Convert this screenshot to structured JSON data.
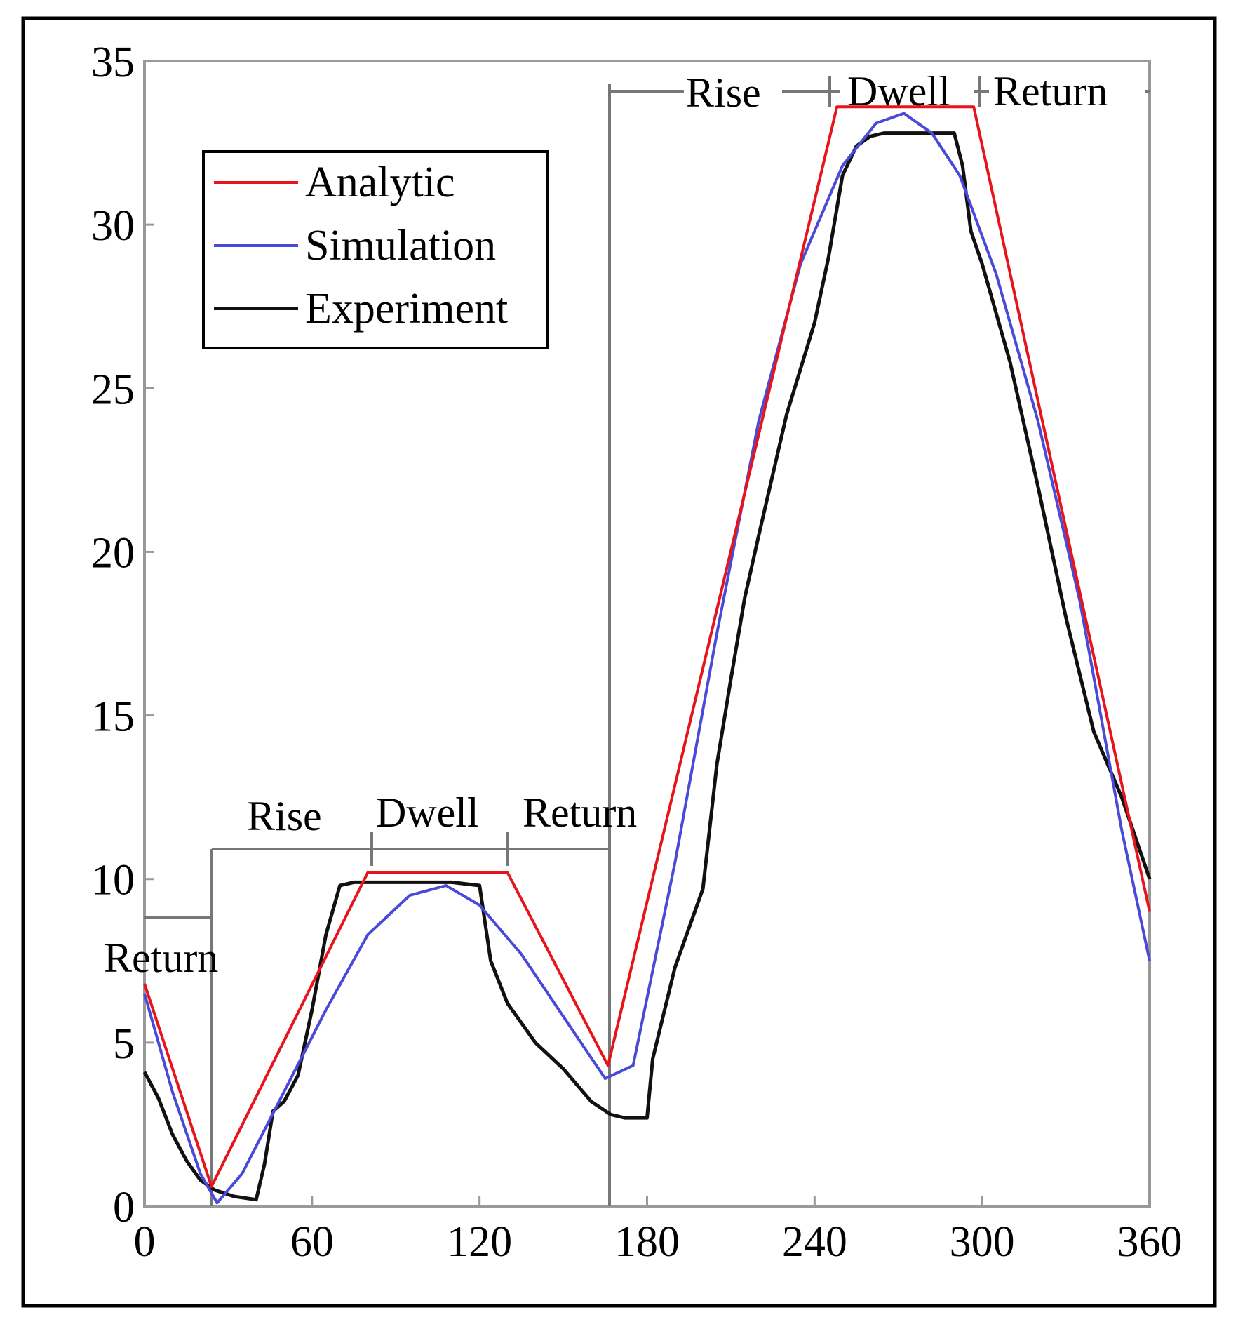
{
  "chart_data": {
    "type": "line",
    "title": "",
    "xlabel": "",
    "ylabel": "",
    "xlim": [
      0,
      360
    ],
    "ylim": [
      0,
      35
    ],
    "xticks": [
      "0",
      "60",
      "120",
      "180",
      "240",
      "300",
      "360"
    ],
    "yticks": [
      "0",
      "5",
      "10",
      "15",
      "20",
      "25",
      "30",
      "35"
    ],
    "grid": false,
    "legend_position": "top-left",
    "series": [
      {
        "name": "Analytic",
        "color": "#e8141c",
        "x": [
          0,
          24,
          80,
          130,
          166,
          248,
          297,
          360
        ],
        "y": [
          6.8,
          0.6,
          10.2,
          10.2,
          4.3,
          33.6,
          33.6,
          9.0
        ]
      },
      {
        "name": "Simulation",
        "color": "#4a4ad8",
        "x": [
          0,
          10,
          20,
          26,
          35,
          50,
          65,
          80,
          95,
          108,
          120,
          135,
          150,
          165,
          175,
          190,
          205,
          220,
          235,
          250,
          262,
          272,
          282,
          292,
          305,
          320,
          335,
          350,
          360
        ],
        "y": [
          6.5,
          3.5,
          1.0,
          0.1,
          1.0,
          3.5,
          6.0,
          8.3,
          9.5,
          9.8,
          9.2,
          7.7,
          5.8,
          3.9,
          4.3,
          10.5,
          17.5,
          24.0,
          28.8,
          31.8,
          33.1,
          33.4,
          32.8,
          31.5,
          28.5,
          24.0,
          18.5,
          11.5,
          7.5
        ]
      },
      {
        "name": "Experiment",
        "color": "#111111",
        "x": [
          0,
          5,
          10,
          15,
          20,
          25,
          32,
          40,
          43,
          46,
          50,
          55,
          60,
          65,
          70,
          75,
          80,
          90,
          100,
          110,
          120,
          124,
          130,
          140,
          150,
          160,
          167,
          172,
          180,
          182,
          190,
          200,
          205,
          210,
          215,
          220,
          230,
          240,
          245,
          250,
          255,
          260,
          265,
          270,
          280,
          290,
          293,
          296,
          300,
          310,
          320,
          330,
          340,
          350,
          360
        ],
        "y": [
          4.1,
          3.3,
          2.2,
          1.4,
          0.8,
          0.5,
          0.3,
          0.2,
          1.3,
          2.9,
          3.2,
          4.0,
          6.0,
          8.3,
          9.8,
          9.9,
          9.9,
          9.9,
          9.9,
          9.9,
          9.8,
          7.5,
          6.2,
          5.0,
          4.2,
          3.2,
          2.8,
          2.7,
          2.7,
          4.5,
          7.3,
          9.7,
          13.5,
          16.1,
          18.6,
          20.5,
          24.2,
          27.0,
          29.0,
          31.5,
          32.4,
          32.7,
          32.8,
          32.8,
          32.8,
          32.8,
          31.8,
          29.8,
          28.8,
          25.8,
          22.0,
          18.0,
          14.5,
          12.5,
          10.0
        ]
      }
    ],
    "phase_labels": {
      "first_return": "Return",
      "first_rise": "Rise",
      "first_dwell": "Dwell",
      "second_return": "Return",
      "second_rise": "Rise",
      "second_dwell": "Dwell",
      "third_return": "Return"
    }
  }
}
